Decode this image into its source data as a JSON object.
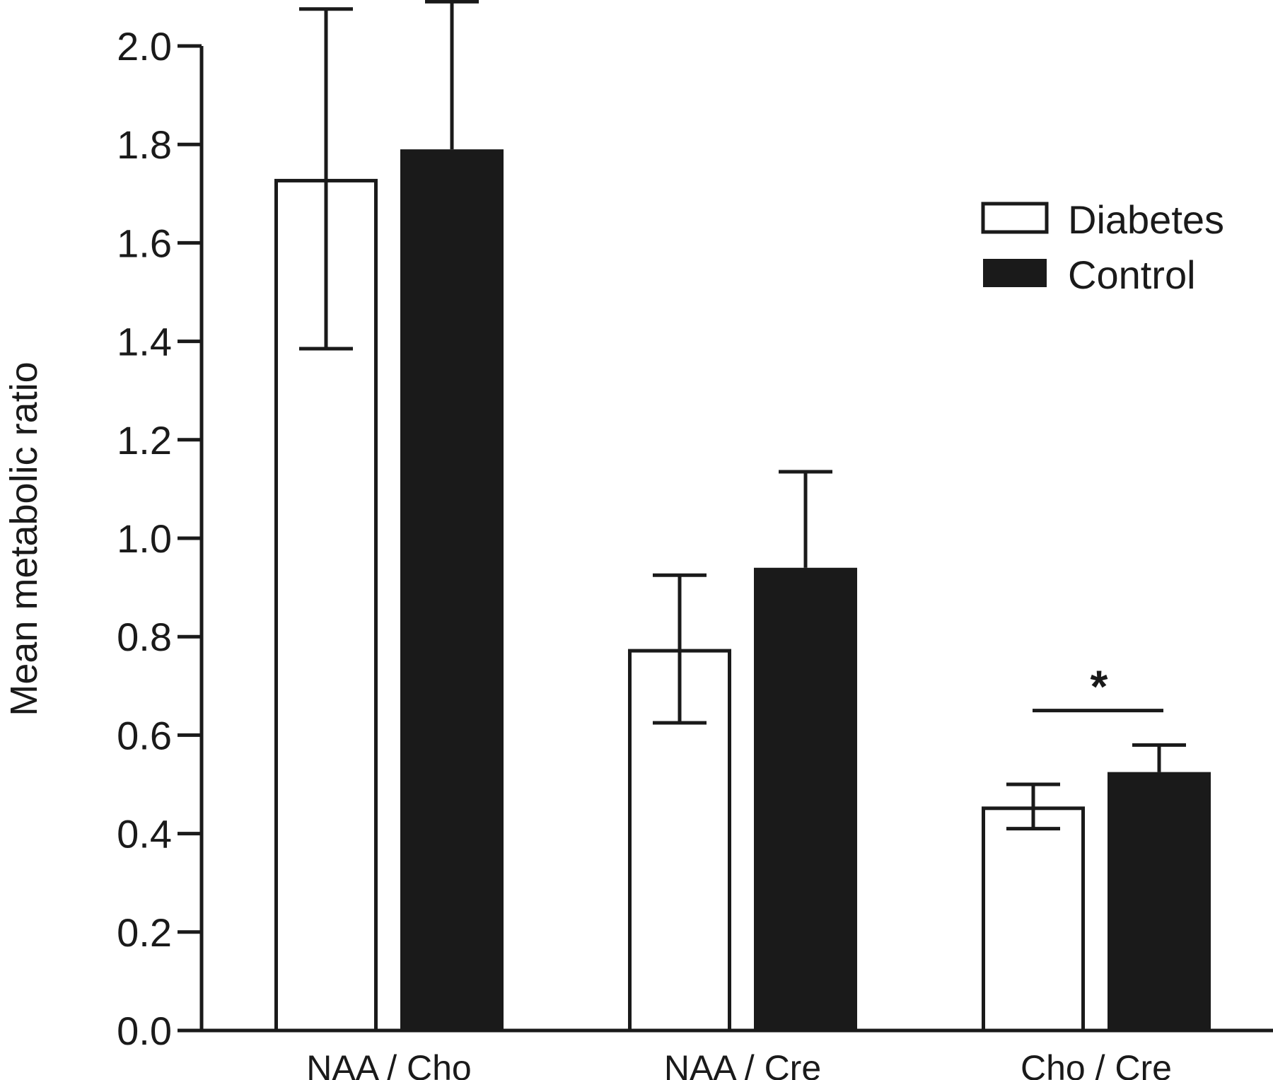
{
  "chart_data": {
    "type": "bar",
    "title": "",
    "xlabel": "",
    "ylabel": "Mean metabolic ratio",
    "ylim": [
      0,
      2.0
    ],
    "yticks": [
      0.0,
      0.2,
      0.4,
      0.6,
      0.8,
      1.0,
      1.2,
      1.4,
      1.6,
      1.8,
      2.0
    ],
    "ytick_labels": [
      "0.0",
      "0.2",
      "0.4",
      "0.6",
      "0.8",
      "1.0",
      "1.2",
      "1.4",
      "1.6",
      "1.8",
      "2.0"
    ],
    "categories": [
      "NAA / Cho",
      "NAA / Cre",
      "Cho / Cre"
    ],
    "series": [
      {
        "name": "Diabetes",
        "values": [
          1.73,
          0.775,
          0.455
        ],
        "error": [
          0.345,
          0.15,
          0.045
        ],
        "error_style": "both",
        "fill": "#ffffff",
        "stroke": "#1a1a1a"
      },
      {
        "name": "Control",
        "values": [
          1.79,
          0.94,
          0.525
        ],
        "error": [
          0.3,
          0.195,
          0.055
        ],
        "error_style": "up",
        "fill": "#1a1a1a",
        "stroke": "#1a1a1a"
      }
    ],
    "legend": {
      "position": "top-right"
    },
    "grid": false,
    "annotations": [
      {
        "text": "*",
        "category": "Cho / Cre",
        "bracket_y": 0.65
      }
    ]
  }
}
